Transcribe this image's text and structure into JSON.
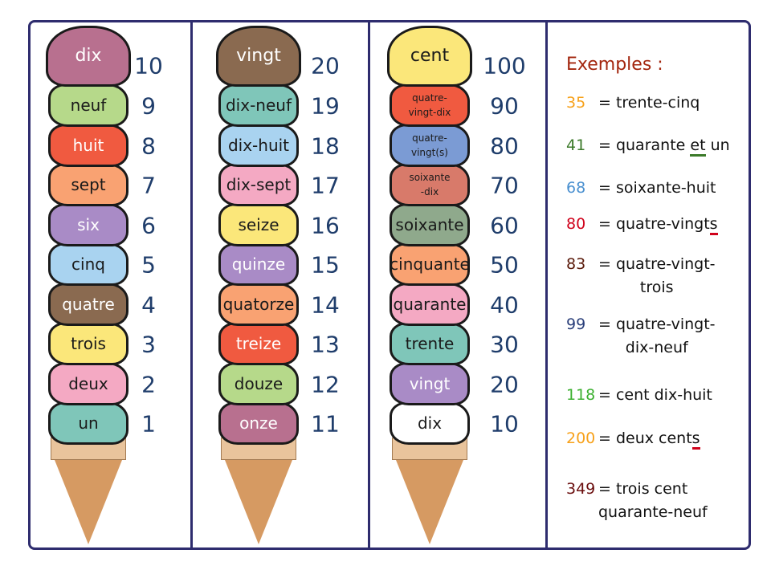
{
  "columns": [
    {
      "scoops": [
        {
          "label": "dix",
          "number": "10",
          "color": "#b8708f",
          "text": "light"
        },
        {
          "label": "neuf",
          "number": "9",
          "color": "#b6d98a"
        },
        {
          "label": "huit",
          "number": "8",
          "color": "#f05a40",
          "text": "light"
        },
        {
          "label": "sept",
          "number": "7",
          "color": "#f9a272"
        },
        {
          "label": "six",
          "number": "6",
          "color": "#a98bc6",
          "text": "light"
        },
        {
          "label": "cinq",
          "number": "5",
          "color": "#a9d3f0"
        },
        {
          "label": "quatre",
          "number": "4",
          "color": "#8a6a50",
          "text": "light"
        },
        {
          "label": "trois",
          "number": "3",
          "color": "#fbe77a"
        },
        {
          "label": "deux",
          "number": "2",
          "color": "#f4a9c3"
        },
        {
          "label": "un",
          "number": "1",
          "color": "#7fc6b9"
        }
      ]
    },
    {
      "scoops": [
        {
          "label": "vingt",
          "number": "20",
          "color": "#8a6a50",
          "text": "light"
        },
        {
          "label": "dix-neuf",
          "number": "19",
          "color": "#7fc6b9"
        },
        {
          "label": "dix-huit",
          "number": "18",
          "color": "#a9d3f0"
        },
        {
          "label": "dix-sept",
          "number": "17",
          "color": "#f4a9c3"
        },
        {
          "label": "seize",
          "number": "16",
          "color": "#fbe77a"
        },
        {
          "label": "quinze",
          "number": "15",
          "color": "#a98bc6",
          "text": "light"
        },
        {
          "label": "quatorze",
          "number": "14",
          "color": "#f9a272"
        },
        {
          "label": "treize",
          "number": "13",
          "color": "#f05a40",
          "text": "light"
        },
        {
          "label": "douze",
          "number": "12",
          "color": "#b6d98a"
        },
        {
          "label": "onze",
          "number": "11",
          "color": "#b8708f",
          "text": "light"
        }
      ]
    },
    {
      "scoops": [
        {
          "label": "cent",
          "number": "100",
          "color": "#fbe77a"
        },
        {
          "label": "quatre-\nvingt-dix",
          "number": "90",
          "color": "#f05a40",
          "size": "small"
        },
        {
          "label": "quatre-\nvingt(s)",
          "number": "80",
          "color": "#7b9bd4",
          "size": "small"
        },
        {
          "label": "soixante\n-dix",
          "number": "70",
          "color": "#d87a6a",
          "size": "small"
        },
        {
          "label": "soixante",
          "number": "60",
          "color": "#8fa98c"
        },
        {
          "label": "cinquante",
          "number": "50",
          "color": "#f9a272"
        },
        {
          "label": "quarante",
          "number": "40",
          "color": "#f4a9c3"
        },
        {
          "label": "trente",
          "number": "30",
          "color": "#7fc6b9"
        },
        {
          "label": "vingt",
          "number": "20",
          "color": "#a98bc6",
          "text": "light"
        },
        {
          "label": "dix",
          "number": "10",
          "color": "#ffffff"
        }
      ]
    }
  ],
  "examples": {
    "title": "Exemples :",
    "items": [
      {
        "number": "35",
        "color": "#f7a11a",
        "pre": "= trente-cinq"
      },
      {
        "number": "41",
        "color": "#3c7a2a",
        "pre": "= quarante ",
        "under": "et",
        "post": " un",
        "under_color": "#3c7a2a"
      },
      {
        "number": "68",
        "color": "#4a90d0",
        "pre": "= soixante-huit"
      },
      {
        "number": "80",
        "color": "#d0021b",
        "pre": "= quatre-vingt",
        "under": "s",
        "post": "",
        "under_color": "#d0021b"
      },
      {
        "number": "83",
        "color": "#5a1a0a",
        "pre": "= quatre-vingt-",
        "line2": "trois"
      },
      {
        "number": "99",
        "color": "#2a3f7a",
        "pre": "= quatre-vingt-",
        "line2": "dix-neuf"
      },
      {
        "number": "118",
        "color": "#3cb030",
        "pre": "= cent dix-huit"
      },
      {
        "number": "200",
        "color": "#f7a11a",
        "pre": "= deux cent",
        "under": "s",
        "post": "",
        "under_color": "#d0021b"
      },
      {
        "number": "349",
        "color": "#6b0f0f",
        "pre": "= trois cent",
        "line2": "quarante-neuf"
      }
    ]
  }
}
